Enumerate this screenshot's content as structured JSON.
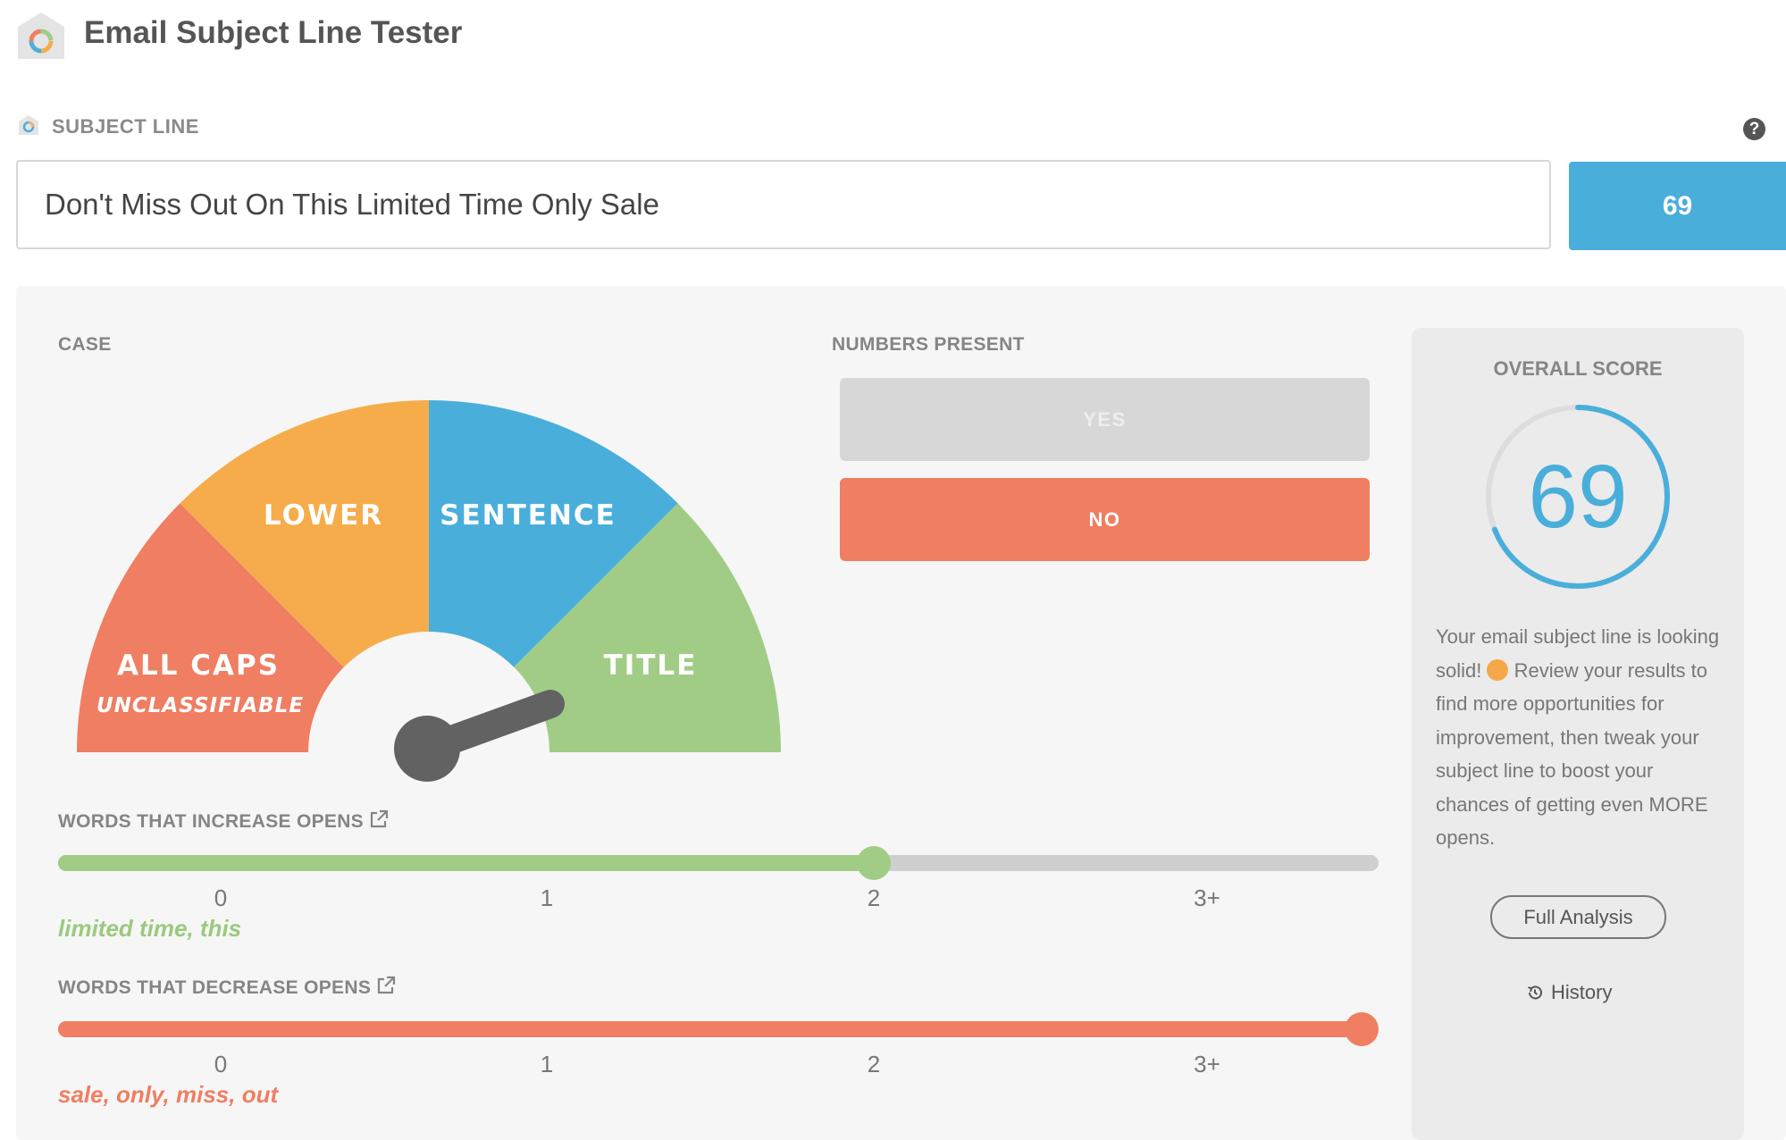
{
  "app": {
    "title": "Email Subject Line Tester",
    "logo_icon": "house-ring-logo-icon"
  },
  "subject": {
    "label": "SUBJECT LINE",
    "value": "Don't Miss Out On This Limited Time Only Sale",
    "score_button": "69",
    "help_icon": "?"
  },
  "case": {
    "label": "CASE",
    "segments": [
      "ALL CAPS",
      "LOWER",
      "SENTENCE",
      "TITLE"
    ],
    "sub_label": "UNCLASSIFIABLE",
    "colors": {
      "all_caps": "#ef7e62",
      "lower": "#f6ac4a",
      "sentence": "#4aaedb",
      "title": "#a1cc86"
    }
  },
  "numbers": {
    "label": "NUMBERS PRESENT",
    "yes": "YES",
    "no": "NO",
    "selected": "NO"
  },
  "increase": {
    "label": "WORDS THAT INCREASE OPENS",
    "ticks": [
      "0",
      "1",
      "2",
      "3+"
    ],
    "level": 2,
    "words": "limited time, this",
    "color": "#9bc97e"
  },
  "decrease": {
    "label": "WORDS THAT DECREASE OPENS",
    "ticks": [
      "0",
      "1",
      "2",
      "3+"
    ],
    "level": 4,
    "words": "sale, only, miss, out",
    "color": "#ef7e62"
  },
  "overall": {
    "label": "OVERALL SCORE",
    "score": "69",
    "score_value": 69,
    "desc_1": "Your email subject line is looking solid!",
    "desc_2": "Review your results to find more opportunities for improvement, then tweak your subject line to boost your chances of getting even MORE opens.",
    "full_analysis": "Full Analysis",
    "history": "History"
  }
}
